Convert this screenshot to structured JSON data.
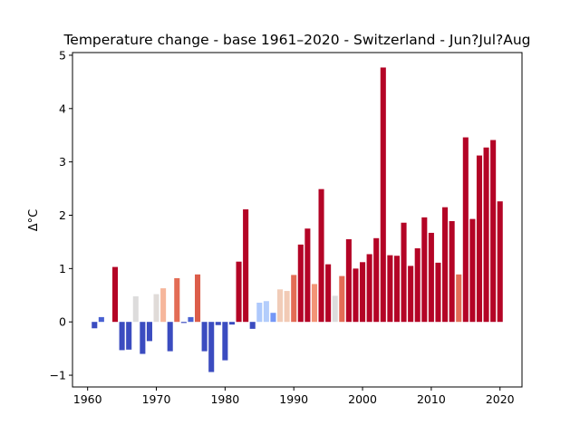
{
  "chart_data": {
    "type": "bar",
    "title": "Temperature change - base 1961–2020 - Switzerland - Jun?Jul?Aug",
    "xlabel": "",
    "ylabel": "Δ°C",
    "xlim": [
      1957.8,
      2023.2
    ],
    "ylim": [
      -1.22,
      5.05
    ],
    "xticks": [
      1960,
      1970,
      1980,
      1990,
      2000,
      2010,
      2020
    ],
    "yticks": [
      -1,
      0,
      1,
      2,
      3,
      4,
      5
    ],
    "grid": false,
    "colormap": "coolwarm",
    "x": [
      1961,
      1962,
      1963,
      1964,
      1965,
      1966,
      1967,
      1968,
      1969,
      1970,
      1971,
      1972,
      1973,
      1974,
      1975,
      1976,
      1977,
      1978,
      1979,
      1980,
      1981,
      1982,
      1983,
      1984,
      1985,
      1986,
      1987,
      1988,
      1989,
      1990,
      1991,
      1992,
      1993,
      1994,
      1995,
      1996,
      1997,
      1998,
      1999,
      2000,
      2001,
      2002,
      2003,
      2004,
      2005,
      2006,
      2007,
      2008,
      2009,
      2010,
      2011,
      2012,
      2013,
      2014,
      2015,
      2016,
      2017,
      2018,
      2019,
      2020
    ],
    "values": [
      -0.12,
      0.09,
      0.0,
      1.03,
      -0.53,
      -0.52,
      0.48,
      -0.6,
      -0.36,
      0.52,
      0.63,
      -0.55,
      0.82,
      -0.02,
      0.09,
      0.89,
      -0.55,
      -0.94,
      -0.06,
      -0.72,
      -0.05,
      1.13,
      2.11,
      -0.13,
      0.36,
      0.39,
      0.17,
      0.61,
      0.58,
      0.88,
      1.45,
      1.75,
      0.71,
      2.49,
      1.08,
      0.49,
      0.86,
      1.55,
      1.0,
      1.12,
      1.27,
      1.57,
      4.77,
      1.25,
      1.24,
      1.86,
      1.05,
      1.38,
      1.96,
      1.67,
      1.11,
      2.15,
      1.89,
      0.89,
      3.46,
      1.93,
      3.12,
      3.27,
      3.41,
      2.26
    ],
    "colors": [
      "#3b4cc0",
      "#4961d2",
      "#3b4cc0",
      "#b40426",
      "#3b4cc0",
      "#3b4cc0",
      "#dddcdc",
      "#3b4cc0",
      "#3b4cc0",
      "#e0dbd8",
      "#f6b69b",
      "#3b4cc0",
      "#e36c55",
      "#3b4cc0",
      "#4961d2",
      "#dc5d4a",
      "#3b4cc0",
      "#3b4cc0",
      "#3b4cc0",
      "#3b4cc0",
      "#3b4cc0",
      "#b40426",
      "#b40426",
      "#3b4cc0",
      "#aec9fc",
      "#b3cdfb",
      "#7597f6",
      "#f1ccb8",
      "#f2cab5",
      "#e36c55",
      "#b40426",
      "#b40426",
      "#f39577",
      "#b40426",
      "#b40426",
      "#dddcdc",
      "#e36c55",
      "#b40426",
      "#b40426",
      "#b40426",
      "#b40426",
      "#b40426",
      "#b40426",
      "#b40426",
      "#b40426",
      "#b40426",
      "#b40426",
      "#b40426",
      "#b40426",
      "#b40426",
      "#b40426",
      "#b40426",
      "#b40426",
      "#e36c55",
      "#b40426",
      "#b40426",
      "#b40426",
      "#b40426",
      "#b40426",
      "#b40426"
    ]
  }
}
